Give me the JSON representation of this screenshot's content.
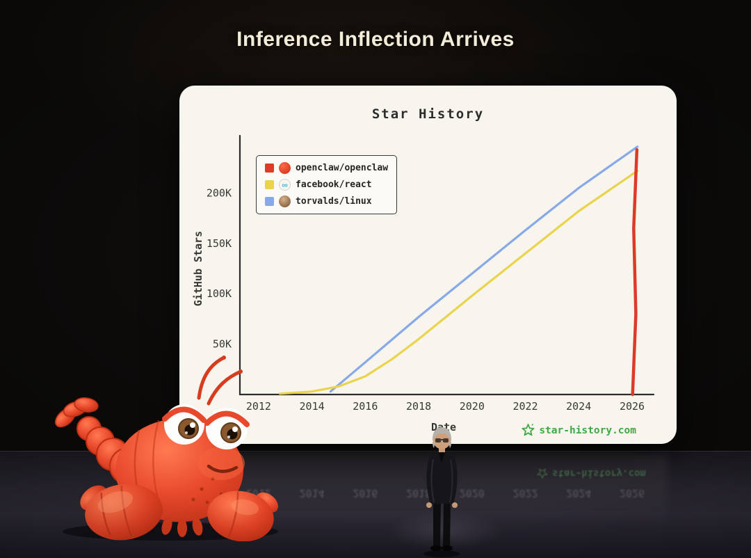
{
  "slide": {
    "title": "Inference Inflection Arrives"
  },
  "chart_data": {
    "type": "line",
    "title": "Star History",
    "xlabel": "Date",
    "ylabel": "GitHub Stars",
    "watermark": "star-history.com",
    "x_ticks": [
      2012,
      2014,
      2016,
      2018,
      2020,
      2022,
      2024,
      2026
    ],
    "y_ticks": [
      {
        "label": "50K",
        "value": 50000
      },
      {
        "label": "100K",
        "value": 100000
      },
      {
        "label": "150K",
        "value": 150000
      },
      {
        "label": "200K",
        "value": 200000
      }
    ],
    "xlim": [
      2011.3,
      2026.6
    ],
    "ylim": [
      0,
      250000
    ],
    "grid": false,
    "legend_position": "top-left",
    "series": [
      {
        "name": "openclaw/openclaw",
        "color": "#dd3b28",
        "avatar": "lobster-avatar",
        "x": [
          2026.02,
          2026.14,
          2026.06,
          2026.18
        ],
        "y": [
          0,
          80000,
          165000,
          243000
        ]
      },
      {
        "name": "facebook/react",
        "color": "#e9d44b",
        "avatar": "react-logo",
        "x": [
          2012.8,
          2014.0,
          2015.0,
          2016.0,
          2017.0,
          2018.0,
          2020.0,
          2022.0,
          2024.0,
          2026.2
        ],
        "y": [
          800,
          3000,
          8000,
          18000,
          35000,
          55000,
          98000,
          140000,
          182000,
          222000
        ]
      },
      {
        "name": "torvalds/linux",
        "color": "#87a9e8",
        "avatar": "torvalds-avatar",
        "x": [
          2014.7,
          2016.0,
          2018.0,
          2020.0,
          2022.0,
          2024.0,
          2026.2
        ],
        "y": [
          3000,
          32000,
          77000,
          120000,
          163000,
          205000,
          246000
        ]
      }
    ]
  },
  "scene": {
    "reflection_years": [
      2012,
      2014,
      2016,
      2018,
      2020,
      2022,
      2024,
      2026
    ],
    "reflection_watermark": "star-history.com"
  },
  "colors": {
    "background": "#0a0908",
    "title_text": "#f2ecd9",
    "card_bg": "#f8f5ef",
    "chart_ink": "#2e2d2b",
    "series_red": "#dd3b28",
    "series_yellow": "#e9d44b",
    "series_blue": "#87a9e8",
    "watermark_green": "#3fa944"
  }
}
